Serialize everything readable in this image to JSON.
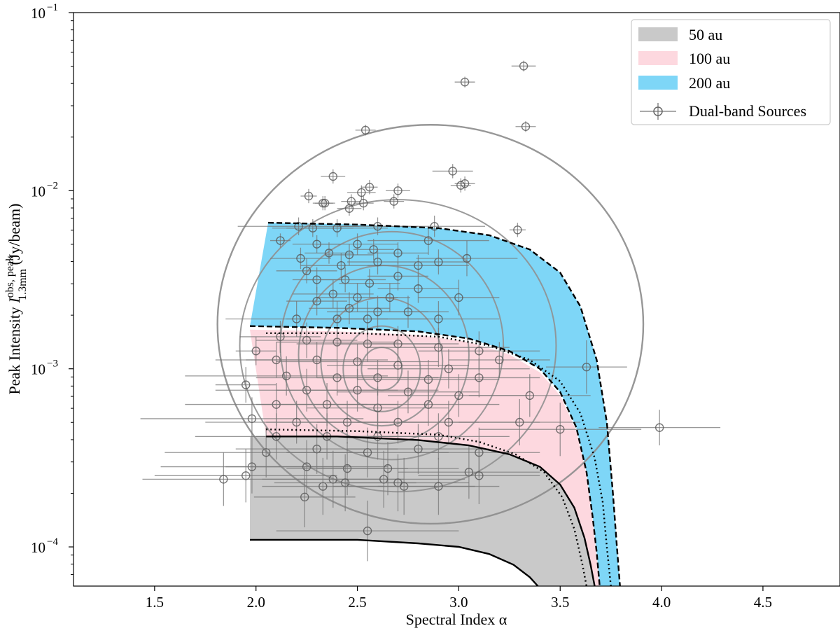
{
  "chart_data": {
    "type": "scatter",
    "title": "",
    "xlabel": "Spectral Index α",
    "ylabel": {
      "main": "Peak Intensity ",
      "symbol": "I",
      "superscript": "obs, peak",
      "subscript": "1.3mm",
      "unit": " (Jy/beam)"
    },
    "xlim": [
      1.1,
      4.88
    ],
    "ylim_log10": [
      -4.22,
      -1.0
    ],
    "y_scale": "log",
    "x_ticks": [
      "1.5",
      "2.0",
      "2.5",
      "3.0",
      "3.5",
      "4.0",
      "4.5"
    ],
    "x_tick_values": [
      1.5,
      2.0,
      2.5,
      3.0,
      3.5,
      4.0,
      4.5
    ],
    "y_ticks": [
      {
        "base": "10",
        "exp": "−1",
        "value": -1
      },
      {
        "base": "10",
        "exp": "−2",
        "value": -2
      },
      {
        "base": "10",
        "exp": "−3",
        "value": -3
      },
      {
        "base": "10",
        "exp": "−4",
        "value": -4
      }
    ],
    "grid": false,
    "legend_position": "top-right",
    "legend": [
      {
        "label": "50 au",
        "type": "patch",
        "color": "#c9c9c9"
      },
      {
        "label": "100 au",
        "type": "patch",
        "color": "#fdd8df"
      },
      {
        "label": "200 au",
        "type": "patch",
        "color": "#7ed6f7"
      },
      {
        "label": "Dual-band Sources",
        "type": "marker",
        "color": "#777777"
      }
    ],
    "bands": [
      {
        "name": "50 au",
        "color": "#c9c9c9",
        "upper": [
          [
            1.97,
            -3.38
          ],
          [
            2.4,
            -3.38
          ],
          [
            2.8,
            -3.4
          ],
          [
            3.05,
            -3.43
          ],
          [
            3.25,
            -3.48
          ],
          [
            3.4,
            -3.55
          ],
          [
            3.5,
            -3.65
          ],
          [
            3.57,
            -3.78
          ],
          [
            3.62,
            -3.95
          ],
          [
            3.65,
            -4.1
          ],
          [
            3.67,
            -4.22
          ]
        ],
        "lower": [
          [
            1.97,
            -3.96
          ],
          [
            2.5,
            -3.96
          ],
          [
            2.8,
            -3.98
          ],
          [
            3.0,
            -4.0
          ],
          [
            3.15,
            -4.04
          ],
          [
            3.27,
            -4.1
          ],
          [
            3.35,
            -4.17
          ],
          [
            3.39,
            -4.22
          ]
        ]
      },
      {
        "name": "100 au",
        "color": "#fdd8df",
        "upper": [
          [
            1.97,
            -2.78
          ],
          [
            2.4,
            -2.79
          ],
          [
            2.8,
            -2.81
          ],
          [
            3.05,
            -2.85
          ],
          [
            3.25,
            -2.92
          ],
          [
            3.4,
            -3.02
          ],
          [
            3.5,
            -3.15
          ],
          [
            3.58,
            -3.35
          ],
          [
            3.63,
            -3.6
          ],
          [
            3.66,
            -3.85
          ],
          [
            3.68,
            -4.05
          ],
          [
            3.695,
            -4.22
          ]
        ],
        "lower": [
          [
            2.05,
            -3.38
          ],
          [
            2.4,
            -3.38
          ],
          [
            2.8,
            -3.4
          ],
          [
            3.05,
            -3.43
          ],
          [
            3.25,
            -3.48
          ],
          [
            3.4,
            -3.55
          ],
          [
            3.5,
            -3.65
          ],
          [
            3.57,
            -3.78
          ],
          [
            3.62,
            -3.95
          ],
          [
            3.65,
            -4.1
          ],
          [
            3.67,
            -4.22
          ]
        ]
      },
      {
        "name": "200 au",
        "color": "#7ed6f7",
        "upper": [
          [
            2.06,
            -2.18
          ],
          [
            2.5,
            -2.19
          ],
          [
            2.9,
            -2.21
          ],
          [
            3.15,
            -2.25
          ],
          [
            3.35,
            -2.33
          ],
          [
            3.5,
            -2.46
          ],
          [
            3.6,
            -2.65
          ],
          [
            3.68,
            -2.95
          ],
          [
            3.73,
            -3.3
          ],
          [
            3.76,
            -3.7
          ],
          [
            3.78,
            -4.0
          ],
          [
            3.795,
            -4.22
          ]
        ],
        "lower": [
          [
            1.97,
            -2.76
          ],
          [
            2.4,
            -2.77
          ],
          [
            2.8,
            -2.79
          ],
          [
            3.05,
            -2.83
          ],
          [
            3.25,
            -2.9
          ],
          [
            3.4,
            -3.0
          ],
          [
            3.5,
            -3.13
          ],
          [
            3.58,
            -3.33
          ],
          [
            3.63,
            -3.58
          ],
          [
            3.66,
            -3.83
          ],
          [
            3.68,
            -4.03
          ],
          [
            3.695,
            -4.22
          ]
        ]
      }
    ],
    "dotted_curves": [
      [
        [
          2.05,
          -2.8
        ],
        [
          2.5,
          -2.8
        ],
        [
          2.9,
          -2.82
        ],
        [
          3.15,
          -2.87
        ],
        [
          3.35,
          -2.95
        ],
        [
          3.5,
          -3.07
        ],
        [
          3.6,
          -3.25
        ],
        [
          3.67,
          -3.5
        ],
        [
          3.71,
          -3.75
        ],
        [
          3.73,
          -4.0
        ],
        [
          3.75,
          -4.22
        ]
      ],
      [
        [
          2.05,
          -3.34
        ],
        [
          2.5,
          -3.35
        ],
        [
          2.9,
          -3.37
        ],
        [
          3.1,
          -3.41
        ],
        [
          3.28,
          -3.48
        ],
        [
          3.42,
          -3.58
        ],
        [
          3.51,
          -3.72
        ],
        [
          3.57,
          -3.9
        ],
        [
          3.61,
          -4.1
        ],
        [
          3.63,
          -4.22
        ]
      ]
    ],
    "contours": [
      {
        "cx": 2.86,
        "cy": -2.75,
        "rx": 1.05,
        "ry": 1.12
      },
      {
        "cx": 2.7,
        "cy": -2.87,
        "rx": 0.78,
        "ry": 0.82
      },
      {
        "cx": 2.67,
        "cy": -2.87,
        "rx": 0.55,
        "ry": 0.64
      },
      {
        "cx": 2.63,
        "cy": -2.92,
        "rx": 0.42,
        "ry": 0.5
      },
      {
        "cx": 2.62,
        "cy": -2.96,
        "rx": 0.3,
        "ry": 0.36
      },
      {
        "cx": 2.62,
        "cy": -3.0,
        "rx": 0.19,
        "ry": 0.24
      },
      {
        "cx": 2.62,
        "cy": -3.0,
        "rx": 0.1,
        "ry": 0.12
      }
    ],
    "points": [
      [
        3.32,
        -1.3,
        0.06,
        0.03
      ],
      [
        3.03,
        -1.39,
        0.05,
        0.03
      ],
      [
        3.33,
        -1.64,
        0.05,
        0.03
      ],
      [
        2.54,
        -1.66,
        0.05,
        0.03
      ],
      [
        2.97,
        -1.89,
        0.1,
        0.04
      ],
      [
        2.38,
        -1.92,
        0.06,
        0.04
      ],
      [
        3.03,
        -1.96,
        0.05,
        0.04
      ],
      [
        3.01,
        -1.97,
        0.05,
        0.04
      ],
      [
        2.56,
        -1.98,
        0.04,
        0.04
      ],
      [
        2.26,
        -2.03,
        0.04,
        0.04
      ],
      [
        2.52,
        -2.01,
        0.07,
        0.04
      ],
      [
        2.7,
        -2.0,
        0.06,
        0.04
      ],
      [
        2.47,
        -2.06,
        0.05,
        0.04
      ],
      [
        2.33,
        -2.07,
        0.05,
        0.04
      ],
      [
        2.34,
        -2.07,
        0.05,
        0.04
      ],
      [
        2.53,
        -2.07,
        0.05,
        0.04
      ],
      [
        2.46,
        -2.1,
        0.06,
        0.04
      ],
      [
        2.68,
        -2.06,
        0.05,
        0.04
      ],
      [
        2.21,
        -2.2,
        0.3,
        0.05
      ],
      [
        2.28,
        -2.21,
        0.2,
        0.05
      ],
      [
        2.4,
        -2.21,
        0.25,
        0.05
      ],
      [
        2.6,
        -2.2,
        0.2,
        0.05
      ],
      [
        2.88,
        -2.2,
        0.25,
        0.06
      ],
      [
        3.29,
        -2.22,
        0.04,
        0.04
      ],
      [
        2.12,
        -2.28,
        0.05,
        0.04
      ],
      [
        2.3,
        -2.3,
        0.12,
        0.05
      ],
      [
        2.5,
        -2.3,
        0.2,
        0.06
      ],
      [
        2.7,
        -2.35,
        0.15,
        0.06
      ],
      [
        2.85,
        -2.28,
        0.3,
        0.08
      ],
      [
        2.22,
        -2.38,
        0.15,
        0.06
      ],
      [
        2.36,
        -2.35,
        0.12,
        0.06
      ],
      [
        2.46,
        -2.36,
        0.12,
        0.06
      ],
      [
        2.58,
        -2.33,
        0.1,
        0.06
      ],
      [
        2.8,
        -2.42,
        0.25,
        0.06
      ],
      [
        2.42,
        -2.42,
        0.2,
        0.07
      ],
      [
        2.6,
        -2.4,
        0.15,
        0.07
      ],
      [
        2.25,
        -2.45,
        0.15,
        0.07
      ],
      [
        2.9,
        -2.4,
        0.15,
        0.07
      ],
      [
        3.04,
        -2.38,
        0.25,
        0.1
      ],
      [
        2.3,
        -2.5,
        0.12,
        0.07
      ],
      [
        2.44,
        -2.5,
        0.2,
        0.07
      ],
      [
        2.56,
        -2.52,
        0.15,
        0.08
      ],
      [
        2.7,
        -2.48,
        0.15,
        0.08
      ],
      [
        2.38,
        -2.58,
        0.2,
        0.08
      ],
      [
        2.5,
        -2.6,
        0.2,
        0.08
      ],
      [
        2.66,
        -2.6,
        0.1,
        0.08
      ],
      [
        2.8,
        -2.55,
        0.2,
        0.08
      ],
      [
        3.0,
        -2.6,
        0.2,
        0.1
      ],
      [
        2.3,
        -2.62,
        0.15,
        0.08
      ],
      [
        2.46,
        -2.66,
        0.2,
        0.09
      ],
      [
        2.6,
        -2.68,
        0.25,
        0.09
      ],
      [
        2.75,
        -2.68,
        0.2,
        0.09
      ],
      [
        2.4,
        -2.72,
        0.25,
        0.1
      ],
      [
        2.2,
        -2.72,
        0.35,
        0.1
      ],
      [
        2.55,
        -2.72,
        0.3,
        0.1
      ],
      [
        2.9,
        -2.72,
        0.3,
        0.1
      ],
      [
        2.0,
        -2.9,
        0.1,
        0.08
      ],
      [
        2.12,
        -2.82,
        0.2,
        0.09
      ],
      [
        2.25,
        -2.84,
        0.25,
        0.1
      ],
      [
        2.4,
        -2.85,
        0.3,
        0.1
      ],
      [
        2.55,
        -2.86,
        0.35,
        0.1
      ],
      [
        2.7,
        -2.86,
        0.3,
        0.1
      ],
      [
        2.9,
        -2.88,
        0.35,
        0.11
      ],
      [
        3.1,
        -2.9,
        0.3,
        0.11
      ],
      [
        3.63,
        -2.99,
        0.2,
        0.15
      ],
      [
        3.2,
        -2.95,
        0.25,
        0.1
      ],
      [
        1.95,
        -3.09,
        0.15,
        0.1
      ],
      [
        2.1,
        -2.95,
        0.3,
        0.1
      ],
      [
        2.3,
        -2.95,
        0.35,
        0.1
      ],
      [
        2.5,
        -2.96,
        0.4,
        0.1
      ],
      [
        2.7,
        -2.98,
        0.35,
        0.1
      ],
      [
        2.95,
        -3.0,
        0.4,
        0.11
      ],
      [
        2.15,
        -3.04,
        0.5,
        0.11
      ],
      [
        2.4,
        -3.05,
        0.4,
        0.1
      ],
      [
        2.6,
        -3.05,
        0.3,
        0.1
      ],
      [
        2.85,
        -3.06,
        0.35,
        0.11
      ],
      [
        3.1,
        -3.05,
        0.3,
        0.11
      ],
      [
        2.25,
        -3.12,
        0.45,
        0.12
      ],
      [
        2.5,
        -3.12,
        0.4,
        0.12
      ],
      [
        2.75,
        -3.13,
        0.35,
        0.12
      ],
      [
        3.0,
        -3.15,
        0.35,
        0.12
      ],
      [
        2.1,
        -3.2,
        0.45,
        0.12
      ],
      [
        2.35,
        -3.2,
        0.35,
        0.12
      ],
      [
        2.6,
        -3.22,
        0.35,
        0.12
      ],
      [
        2.85,
        -3.2,
        0.35,
        0.12
      ],
      [
        3.35,
        -3.15,
        0.3,
        0.12
      ],
      [
        1.98,
        -3.28,
        0.55,
        0.12
      ],
      [
        2.2,
        -3.3,
        0.45,
        0.12
      ],
      [
        2.45,
        -3.3,
        0.4,
        0.12
      ],
      [
        2.7,
        -3.3,
        0.4,
        0.12
      ],
      [
        2.95,
        -3.3,
        0.45,
        0.12
      ],
      [
        3.3,
        -3.3,
        0.3,
        0.13
      ],
      [
        2.1,
        -3.38,
        0.4,
        0.13
      ],
      [
        2.35,
        -3.38,
        0.35,
        0.13
      ],
      [
        2.6,
        -3.38,
        0.4,
        0.13
      ],
      [
        2.9,
        -3.38,
        0.35,
        0.13
      ],
      [
        3.5,
        -3.34,
        0.4,
        0.15
      ],
      [
        3.99,
        -3.33,
        0.3,
        0.1
      ],
      [
        2.05,
        -3.47,
        0.5,
        0.14
      ],
      [
        2.3,
        -3.45,
        0.4,
        0.14
      ],
      [
        2.55,
        -3.47,
        0.4,
        0.14
      ],
      [
        2.8,
        -3.45,
        0.35,
        0.14
      ],
      [
        3.1,
        -3.47,
        0.3,
        0.14
      ],
      [
        1.98,
        -3.55,
        0.45,
        0.15
      ],
      [
        2.25,
        -3.55,
        0.4,
        0.15
      ],
      [
        2.45,
        -3.56,
        0.3,
        0.15
      ],
      [
        2.65,
        -3.56,
        0.35,
        0.15
      ],
      [
        3.05,
        -3.58,
        0.35,
        0.15
      ],
      [
        1.95,
        -3.6,
        0.45,
        0.15
      ],
      [
        2.38,
        -3.62,
        0.35,
        0.16
      ],
      [
        2.63,
        -3.62,
        0.4,
        0.16
      ],
      [
        3.1,
        -3.6,
        0.3,
        0.16
      ],
      [
        1.84,
        -3.62,
        0.4,
        0.15
      ],
      [
        2.33,
        -3.66,
        0.3,
        0.16
      ],
      [
        2.44,
        -3.64,
        0.35,
        0.16
      ],
      [
        2.7,
        -3.64,
        0.35,
        0.16
      ],
      [
        2.24,
        -3.72,
        0.25,
        0.17
      ],
      [
        2.73,
        -3.66,
        0.35,
        0.16
      ],
      [
        2.9,
        -3.66,
        0.3,
        0.16
      ],
      [
        2.55,
        -3.91,
        0.45,
        0.17
      ]
    ]
  }
}
